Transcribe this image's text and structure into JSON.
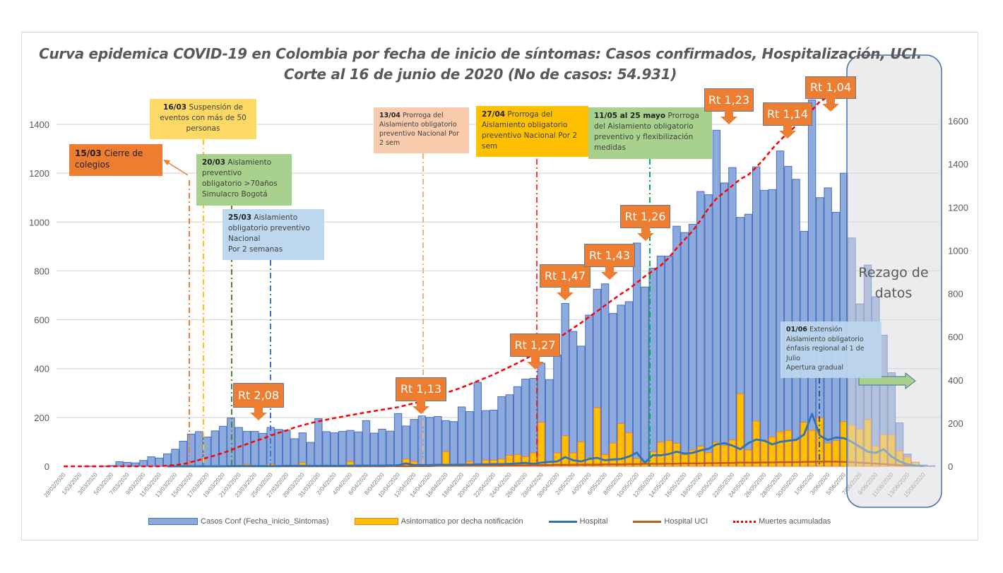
{
  "title": {
    "line1": "Curva epidemica COVID-19 en Colombia  por fecha de inicio de síntomas: Casos confirmados, Hospitalización, UCI.",
    "line2": "Corte  al 16 de junio de 2020 (No de casos: 54.931)"
  },
  "annotations": [
    {
      "date": "15/03",
      "text": "Cierre de colegios",
      "color": "#ED7D31"
    },
    {
      "date": "16/03",
      "text": "Suspensión de eventos con más de 50 personas",
      "color": "#FFD966"
    },
    {
      "date": "20/03",
      "text": "Aislamiento\npreventivo\nobligatorio  >70años\nSimulacro Bogotá",
      "color": "#A9D18E"
    },
    {
      "date": "25/03",
      "text": "Aislamiento\nobligatorio preventivo\nNacional\nPor 2 semanas",
      "color": "#BDD7EE"
    },
    {
      "date": "13/04",
      "text": "Prorroga del Aislamiento obligatorio preventivo  Nacional  Por 2 sem",
      "color": "#F8CBAD"
    },
    {
      "date": "27/04",
      "text": "Prorroga del Aislamiento obligatorio preventivo  Nacional  Por 2 sem",
      "color": "#FFC000"
    },
    {
      "date": "11/05 al 25 mayo",
      "text": "Prorroga del Aislamiento obligatorio preventivo y flexibilización medidas",
      "color": "#A9D18E"
    },
    {
      "date": "01/06",
      "text": "Extensión\nAislamiento obligatorio\nénfasis regional al 1 de\nJulio\nApertura gradual",
      "color": "#BDD7EE"
    }
  ],
  "rt_labels": [
    "Rt 2,08",
    "Rt 1,13",
    "Rt 1,27",
    "Rt 1,47",
    "Rt 1,43",
    "Rt 1,26",
    "Rt 1,23",
    "Rt 1,14",
    "Rt 1,04"
  ],
  "rezago_label": "Rezago de datos",
  "chart_data": {
    "type": "bar",
    "title": "Curva epidemica COVID-19 en Colombia  por fecha de inicio de síntomas: Casos confirmados, Hospitalización, UCI.",
    "xlabel": "",
    "ylabel": "",
    "ylim_left": [
      0,
      1500
    ],
    "yticks_left": [
      0,
      200,
      400,
      600,
      800,
      1000,
      1200,
      1400
    ],
    "ylim_right": [
      0,
      1750
    ],
    "yticks_right": [
      0,
      200,
      400,
      600,
      800,
      1000,
      1200,
      1400,
      1600
    ],
    "grid": true,
    "legend_position": "bottom",
    "categories": [
      "28/02/2020",
      "29/02/2020",
      "1/03/2020",
      "2/03/2020",
      "3/03/2020",
      "4/03/2020",
      "5/03/2020",
      "6/03/2020",
      "7/03/2020",
      "8/03/2020",
      "9/03/2020",
      "10/03/2020",
      "11/03/2020",
      "12/03/2020",
      "13/03/2020",
      "14/03/2020",
      "15/03/2020",
      "16/03/2020",
      "17/03/2020",
      "18/03/2020",
      "19/03/2020",
      "20/03/2020",
      "21/03/2020",
      "22/03/2020",
      "23/03/2020",
      "24/03/2020",
      "25/03/2020",
      "26/03/2020",
      "27/03/2020",
      "28/03/2020",
      "29/03/2020",
      "30/03/2020",
      "31/03/2020",
      "1/04/2020",
      "2/04/2020",
      "3/04/2020",
      "4/04/2020",
      "5/04/2020",
      "6/04/2020",
      "7/04/2020",
      "8/04/2020",
      "9/04/2020",
      "10/04/2020",
      "11/04/2020",
      "12/04/2020",
      "13/04/2020",
      "14/04/2020",
      "15/04/2020",
      "16/04/2020",
      "17/04/2020",
      "18/04/2020",
      "19/04/2020",
      "20/04/2020",
      "21/04/2020",
      "22/04/2020",
      "23/04/2020",
      "24/04/2020",
      "25/04/2020",
      "26/04/2020",
      "27/04/2020",
      "28/04/2020",
      "29/04/2020",
      "30/04/2020",
      "1/05/2020",
      "2/05/2020",
      "3/05/2020",
      "4/05/2020",
      "5/05/2020",
      "6/05/2020",
      "7/05/2020",
      "8/05/2020",
      "9/05/2020",
      "10/05/2020",
      "11/05/2020",
      "12/05/2020",
      "13/05/2020",
      "14/05/2020",
      "15/05/2020",
      "16/05/2020",
      "17/05/2020",
      "18/05/2020",
      "19/05/2020",
      "20/05/2020",
      "21/05/2020",
      "22/05/2020",
      "23/05/2020",
      "24/05/2020",
      "25/05/2020",
      "26/05/2020",
      "27/05/2020",
      "28/05/2020",
      "29/05/2020",
      "30/05/2020",
      "31/05/2020",
      "1/06/2020",
      "2/06/2020",
      "3/06/2020",
      "4/06/2020",
      "5/06/2020",
      "6/06/2020",
      "7/06/2020",
      "8/06/2020",
      "9/06/2020",
      "10/06/2020",
      "11/06/2020",
      "12/06/2020",
      "13/06/2020",
      "14/06/2020",
      "15/06/2020",
      "16/06/2020"
    ],
    "series": [
      {
        "name": "Casos Conf (Fecha_inicio_Sintomas)",
        "type": "bar",
        "axis": "left",
        "color": "#8EA9DB",
        "values": [
          0,
          0,
          0,
          1,
          0,
          1,
          3,
          19,
          16,
          14,
          24,
          39,
          34,
          51,
          70,
          103,
          132,
          142,
          120,
          145,
          164,
          198,
          159,
          143,
          143,
          135,
          159,
          151,
          148,
          113,
          137,
          98,
          195,
          142,
          137,
          143,
          147,
          141,
          187,
          136,
          152,
          144,
          216,
          165,
          192,
          206,
          200,
          204,
          187,
          183,
          243,
          224,
          344,
          228,
          230,
          285,
          293,
          326,
          357,
          360,
          422,
          355,
          456,
          667,
          552,
          492,
          619,
          725,
          747,
          626,
          660,
          674,
          914,
          734,
          811,
          861,
          861,
          983,
          957,
          991,
          1125,
          1112,
          1376,
          1160,
          1223,
          1019,
          1032,
          1226,
          1130,
          1133,
          1291,
          1228,
          1175,
          962,
          1500,
          1100,
          1140,
          1040,
          1200,
          935,
          665,
          824,
          694,
          537,
          383,
          178,
          50,
          17,
          5,
          2
        ]
      },
      {
        "name": "Asintomatico  por decha notificación",
        "type": "bar",
        "axis": "left",
        "color": "#FFC000",
        "values": [
          0,
          0,
          0,
          0,
          0,
          0,
          0,
          0,
          0,
          0,
          0,
          0,
          0,
          0,
          0,
          0,
          0,
          0,
          0,
          0,
          0,
          0,
          5,
          8,
          0,
          0,
          10,
          0,
          0,
          0,
          15,
          5,
          0,
          0,
          0,
          0,
          20,
          5,
          0,
          0,
          0,
          0,
          0,
          30,
          20,
          5,
          0,
          0,
          60,
          0,
          0,
          20,
          0,
          25,
          25,
          30,
          45,
          48,
          40,
          55,
          180,
          20,
          55,
          125,
          55,
          100,
          36,
          240,
          48,
          95,
          175,
          137,
          32,
          17,
          60,
          99,
          105,
          94,
          48,
          67,
          82,
          56,
          99,
          86,
          108,
          297,
          67,
          185,
          108,
          120,
          142,
          147,
          108,
          180,
          147,
          199,
          95,
          105,
          183,
          169,
          152,
          191,
          82,
          130,
          128,
          63,
          39,
          17,
          0,
          0
        ]
      },
      {
        "name": "Hospital",
        "type": "line",
        "axis": "left",
        "color": "#2E75B6",
        "values": [
          null,
          null,
          null,
          null,
          null,
          null,
          null,
          null,
          null,
          null,
          null,
          null,
          null,
          0,
          0,
          0,
          0,
          0,
          0,
          0,
          0,
          1,
          1,
          1,
          1,
          1,
          1,
          1,
          2,
          2,
          2,
          2,
          2,
          2,
          2,
          2,
          3,
          3,
          3,
          3,
          3,
          4,
          4,
          12,
          5,
          5,
          5,
          6,
          6,
          6,
          7,
          7,
          8,
          8,
          9,
          9,
          10,
          12,
          14,
          10,
          15,
          18,
          20,
          38,
          25,
          20,
          30,
          35,
          25,
          28,
          30,
          40,
          56,
          15,
          45,
          45,
          50,
          60,
          52,
          55,
          65,
          72,
          90,
          95,
          85,
          70,
          95,
          110,
          105,
          90,
          100,
          105,
          108,
          130,
          215,
          125,
          108,
          118,
          115,
          100,
          80,
          60,
          55,
          70,
          40,
          20,
          8,
          3,
          2,
          null
        ]
      },
      {
        "name": "Hospital UCI",
        "type": "line",
        "axis": "left",
        "color": "#C55A11",
        "values": [
          null,
          null,
          null,
          null,
          null,
          null,
          null,
          null,
          null,
          null,
          null,
          null,
          null,
          0,
          0,
          0,
          0,
          0,
          0,
          0,
          0,
          0,
          0,
          0,
          0,
          0,
          0,
          0,
          0,
          0,
          0,
          0,
          0,
          0,
          0,
          0,
          0,
          0,
          0,
          0,
          0,
          1,
          1,
          1,
          1,
          1,
          1,
          2,
          2,
          2,
          2,
          2,
          3,
          3,
          3,
          3,
          4,
          4,
          4,
          5,
          5,
          5,
          6,
          6,
          6,
          7,
          7,
          7,
          8,
          8,
          8,
          9,
          9,
          10,
          10,
          10,
          11,
          11,
          12,
          12,
          12,
          13,
          13,
          14,
          14,
          15,
          15,
          15,
          16,
          16,
          17,
          17,
          17,
          18,
          18,
          19,
          19,
          19,
          18,
          17,
          15,
          13,
          11,
          9,
          7,
          5,
          3,
          2,
          1,
          null
        ]
      },
      {
        "name": "Muertes acumuladas",
        "type": "line",
        "axis": "right",
        "color": "#FF0000",
        "values": [
          0,
          0,
          0,
          0,
          0,
          0,
          0,
          0,
          0,
          0,
          0,
          0,
          0,
          3,
          6,
          10,
          20,
          29,
          40,
          50,
          62,
          75,
          90,
          103,
          116,
          128,
          142,
          155,
          166,
          180,
          190,
          200,
          208,
          216,
          223,
          230,
          237,
          243,
          250,
          256,
          262,
          268,
          274,
          283,
          292,
          301,
          313,
          325,
          340,
          352,
          365,
          380,
          395,
          410,
          425,
          443,
          460,
          478,
          497,
          518,
          540,
          565,
          590,
          615,
          640,
          665,
          692,
          718,
          745,
          772,
          798,
          822,
          850,
          880,
          905,
          930,
          965,
          1010,
          1050,
          1090,
          1140,
          1195,
          1240,
          1270,
          1300,
          1330,
          1350,
          1385,
          1425,
          1470,
          1510,
          1545,
          1577,
          1610,
          1650,
          1690,
          1710,
          null,
          null,
          null,
          null,
          null,
          null,
          null,
          null,
          null,
          null,
          null,
          null,
          null
        ]
      }
    ]
  }
}
